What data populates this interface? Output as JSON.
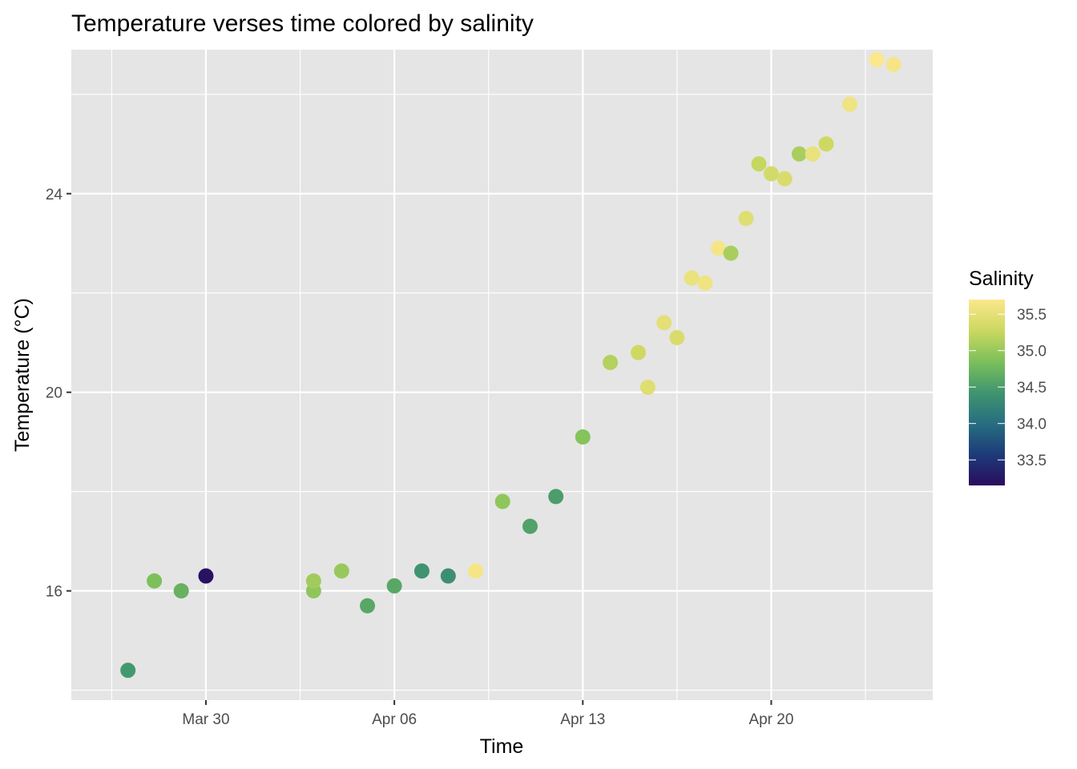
{
  "chart_data": {
    "type": "scatter",
    "title": "Temperature verses time colored by salinity",
    "xlabel": "Time",
    "ylabel": "Temperature (°C)",
    "x_type": "date",
    "xlim": [
      "2023-03-25",
      "2023-04-26"
    ],
    "ylim": [
      13.8,
      26.9
    ],
    "x_ticks": [
      {
        "value": "2023-03-30",
        "label": "Mar 30"
      },
      {
        "value": "2023-04-06",
        "label": "Apr 06"
      },
      {
        "value": "2023-04-13",
        "label": "Apr 13"
      },
      {
        "value": "2023-04-20",
        "label": "Apr 20"
      }
    ],
    "x_minor_ticks": [
      "2023-03-26 12:00",
      "2023-04-02 12:00",
      "2023-04-09 12:00",
      "2023-04-16 12:00",
      "2023-04-23 12:00"
    ],
    "y_ticks": [
      {
        "value": 16,
        "label": "16"
      },
      {
        "value": 20,
        "label": "20"
      },
      {
        "value": 24,
        "label": "24"
      }
    ],
    "y_minor_ticks": [
      14,
      18,
      22,
      26
    ],
    "grid": true,
    "legend": {
      "title": "Salinity",
      "position": "right",
      "type": "colorbar",
      "range": [
        33.15,
        35.7
      ],
      "ticks": [
        {
          "value": 33.5,
          "label": "33.5"
        },
        {
          "value": 34.0,
          "label": "34.0"
        },
        {
          "value": 34.5,
          "label": "34.5"
        },
        {
          "value": 35.0,
          "label": "35.0"
        },
        {
          "value": 35.5,
          "label": "35.5"
        }
      ]
    },
    "points": [
      {
        "x": "2023-03-27 02:30",
        "y": 14.4,
        "salinity": 34.45
      },
      {
        "x": "2023-03-28 02:00",
        "y": 16.2,
        "salinity": 34.85
      },
      {
        "x": "2023-03-29 02:00",
        "y": 16.0,
        "salinity": 34.7
      },
      {
        "x": "2023-03-30 00:00",
        "y": 16.3,
        "salinity": 33.2
      },
      {
        "x": "2023-04-03 00:00",
        "y": 16.0,
        "salinity": 34.95
      },
      {
        "x": "2023-04-03 00:00",
        "y": 16.2,
        "salinity": 35.05
      },
      {
        "x": "2023-04-04 01:00",
        "y": 16.4,
        "salinity": 35.0
      },
      {
        "x": "2023-04-05 00:00",
        "y": 15.7,
        "salinity": 34.6
      },
      {
        "x": "2023-04-06 00:00",
        "y": 16.1,
        "salinity": 34.6
      },
      {
        "x": "2023-04-07 00:30",
        "y": 16.4,
        "salinity": 34.4
      },
      {
        "x": "2023-04-08 00:00",
        "y": 16.3,
        "salinity": 34.35
      },
      {
        "x": "2023-04-09 00:30",
        "y": 16.4,
        "salinity": 35.65
      },
      {
        "x": "2023-04-10 00:30",
        "y": 17.8,
        "salinity": 34.95
      },
      {
        "x": "2023-04-11 01:00",
        "y": 17.3,
        "salinity": 34.55
      },
      {
        "x": "2023-04-12 00:00",
        "y": 17.9,
        "salinity": 34.5
      },
      {
        "x": "2023-04-13 00:00",
        "y": 19.1,
        "salinity": 34.9
      },
      {
        "x": "2023-04-14 00:30",
        "y": 20.6,
        "salinity": 35.15
      },
      {
        "x": "2023-04-15 01:30",
        "y": 20.8,
        "salinity": 35.3
      },
      {
        "x": "2023-04-15 10:00",
        "y": 20.1,
        "salinity": 35.45
      },
      {
        "x": "2023-04-16 00:30",
        "y": 21.4,
        "salinity": 35.5
      },
      {
        "x": "2023-04-16 12:00",
        "y": 21.1,
        "salinity": 35.4
      },
      {
        "x": "2023-04-17 01:00",
        "y": 22.3,
        "salinity": 35.55
      },
      {
        "x": "2023-04-17 13:00",
        "y": 22.2,
        "salinity": 35.6
      },
      {
        "x": "2023-04-18 01:00",
        "y": 22.9,
        "salinity": 35.65
      },
      {
        "x": "2023-04-18 12:00",
        "y": 22.8,
        "salinity": 35.1
      },
      {
        "x": "2023-04-19 01:30",
        "y": 23.5,
        "salinity": 35.45
      },
      {
        "x": "2023-04-19 13:00",
        "y": 24.6,
        "salinity": 35.25
      },
      {
        "x": "2023-04-20 00:00",
        "y": 24.4,
        "salinity": 35.35
      },
      {
        "x": "2023-04-20 12:00",
        "y": 24.3,
        "salinity": 35.4
      },
      {
        "x": "2023-04-21 01:00",
        "y": 24.8,
        "salinity": 35.1
      },
      {
        "x": "2023-04-21 13:00",
        "y": 24.8,
        "salinity": 35.55
      },
      {
        "x": "2023-04-22 01:00",
        "y": 25.0,
        "salinity": 35.3
      },
      {
        "x": "2023-04-22 22:00",
        "y": 25.8,
        "salinity": 35.6
      },
      {
        "x": "2023-04-23 22:00",
        "y": 26.7,
        "salinity": 35.7
      },
      {
        "x": "2023-04-24 13:00",
        "y": 26.6,
        "salinity": 35.65
      }
    ],
    "colors": {
      "panel_background": "#e5e5e5",
      "grid": "#ffffff",
      "tick": "#333333",
      "colorscale": [
        "#2a0d5e",
        "#1d3b79",
        "#276e80",
        "#40956f",
        "#7cc05a",
        "#cbd860",
        "#fbe78c"
      ]
    }
  }
}
